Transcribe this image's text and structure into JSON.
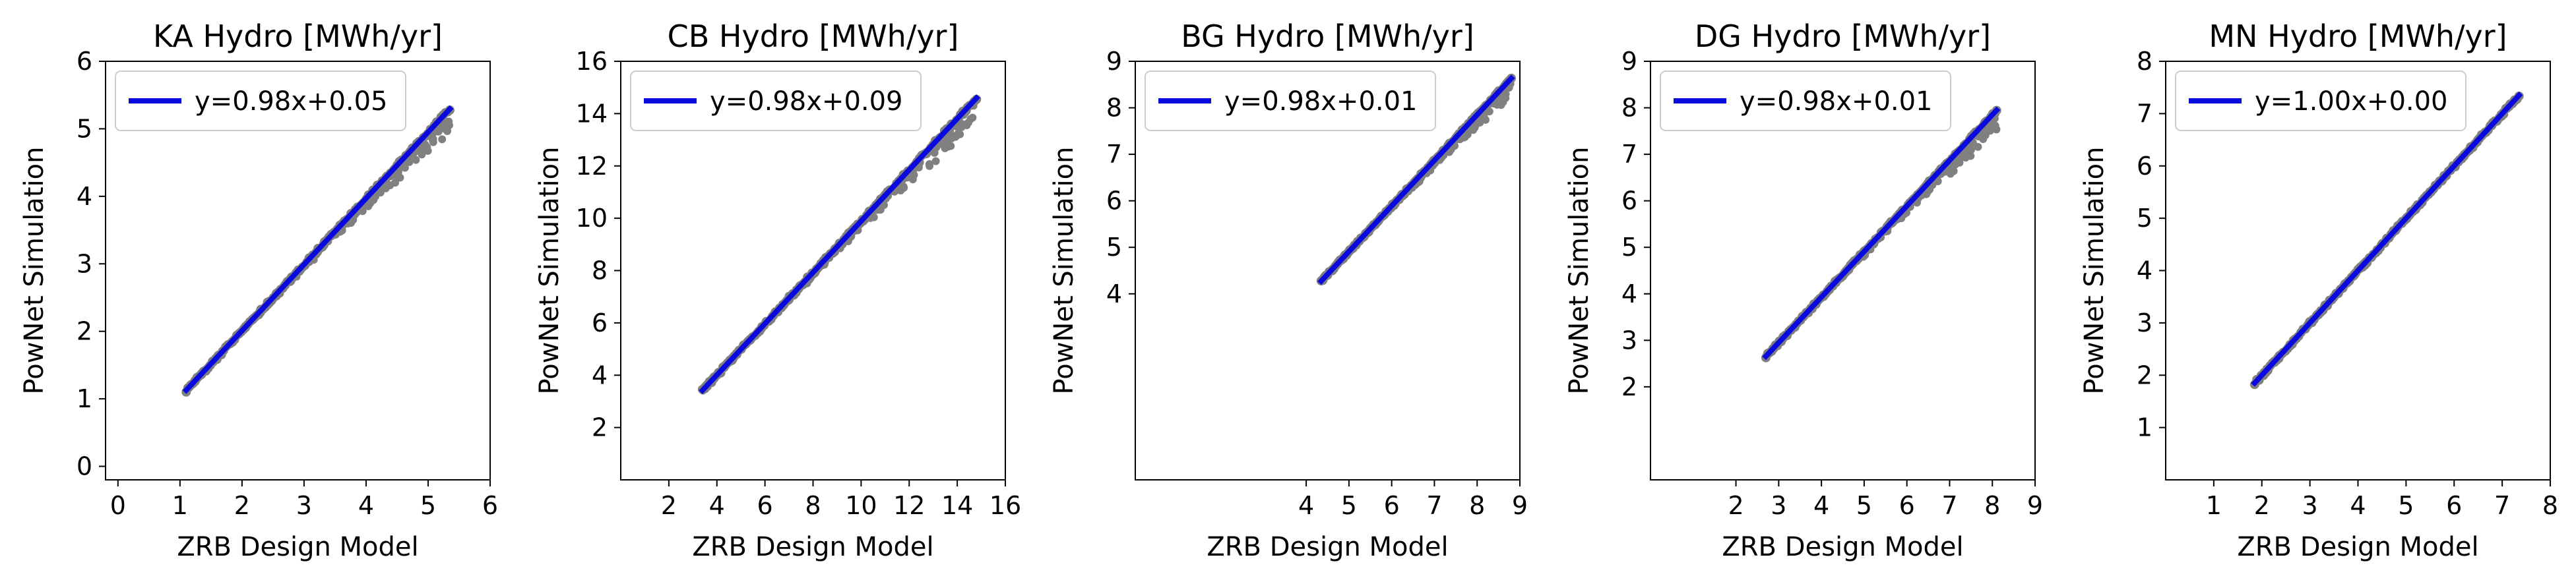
{
  "chart_data": [
    {
      "type": "scatter",
      "title": "KA Hydro [MWh/yr]",
      "xlabel": "ZRB Design Model",
      "ylabel": "PowNet Simulation",
      "xlim": [
        -0.2,
        6
      ],
      "ylim": [
        -0.2,
        6
      ],
      "xticks": [
        0,
        1,
        2,
        3,
        4,
        5,
        6
      ],
      "yticks": [
        0,
        1,
        2,
        3,
        4,
        5,
        6
      ],
      "fit": {
        "label": "y=0.98x+0.05",
        "slope": 0.98,
        "intercept": 0.05,
        "x_range": [
          1.1,
          5.35
        ]
      },
      "scatter_range": [
        1.1,
        5.35
      ],
      "legend_position": "top-left",
      "colors": {
        "points": "#808080",
        "fit": "#0a0adf"
      }
    },
    {
      "type": "scatter",
      "title": "CB Hydro [MWh/yr]",
      "xlabel": "ZRB Design Model",
      "ylabel": "PowNet Simulation",
      "xlim": [
        0,
        16
      ],
      "ylim": [
        0,
        16
      ],
      "xticks": [
        2,
        4,
        6,
        8,
        10,
        12,
        14,
        16
      ],
      "yticks": [
        2,
        4,
        6,
        8,
        10,
        12,
        14,
        16
      ],
      "fit": {
        "label": "y=0.98x+0.09",
        "slope": 0.98,
        "intercept": 0.09,
        "x_range": [
          3.4,
          14.8
        ]
      },
      "scatter_range": [
        3.4,
        14.8
      ],
      "legend_position": "top-left",
      "colors": {
        "points": "#808080",
        "fit": "#0a0adf"
      }
    },
    {
      "type": "scatter",
      "title": "BG Hydro [MWh/yr]",
      "xlabel": "ZRB Design Model",
      "ylabel": "PowNet Simulation",
      "xlim": [
        0,
        9
      ],
      "ylim": [
        0,
        9
      ],
      "xticks": [
        4,
        5,
        6,
        7,
        8,
        9
      ],
      "yticks": [
        4,
        5,
        6,
        7,
        8,
        9
      ],
      "fit": {
        "label": "y=0.98x+0.01",
        "slope": 0.98,
        "intercept": 0.01,
        "x_range": [
          4.35,
          8.8
        ]
      },
      "scatter_range": [
        4.35,
        8.8
      ],
      "legend_position": "top-left",
      "colors": {
        "points": "#808080",
        "fit": "#0a0adf"
      }
    },
    {
      "type": "scatter",
      "title": "DG Hydro [MWh/yr]",
      "xlabel": "ZRB Design Model",
      "ylabel": "PowNet Simulation",
      "xlim": [
        0,
        9
      ],
      "ylim": [
        0,
        9
      ],
      "xticks": [
        2,
        3,
        4,
        5,
        6,
        7,
        8,
        9
      ],
      "yticks": [
        2,
        3,
        4,
        5,
        6,
        7,
        8,
        9
      ],
      "fit": {
        "label": "y=0.98x+0.01",
        "slope": 0.98,
        "intercept": 0.01,
        "x_range": [
          2.7,
          8.1
        ]
      },
      "scatter_range": [
        2.7,
        8.1
      ],
      "legend_position": "top-left",
      "colors": {
        "points": "#808080",
        "fit": "#0a0adf"
      }
    },
    {
      "type": "scatter",
      "title": "MN Hydro [MWh/yr]",
      "xlabel": "ZRB Design Model",
      "ylabel": "PowNet Simulation",
      "xlim": [
        0,
        8
      ],
      "ylim": [
        0,
        8
      ],
      "xticks": [
        1,
        2,
        3,
        4,
        5,
        6,
        7,
        8
      ],
      "yticks": [
        1,
        2,
        3,
        4,
        5,
        6,
        7,
        8
      ],
      "fit": {
        "label": "y=1.00x+0.00",
        "slope": 1.0,
        "intercept": 0.0,
        "x_range": [
          1.85,
          7.35
        ]
      },
      "scatter_range": [
        1.85,
        7.35
      ],
      "legend_position": "top-left",
      "colors": {
        "points": "#808080",
        "fit": "#0a0adf"
      }
    }
  ]
}
